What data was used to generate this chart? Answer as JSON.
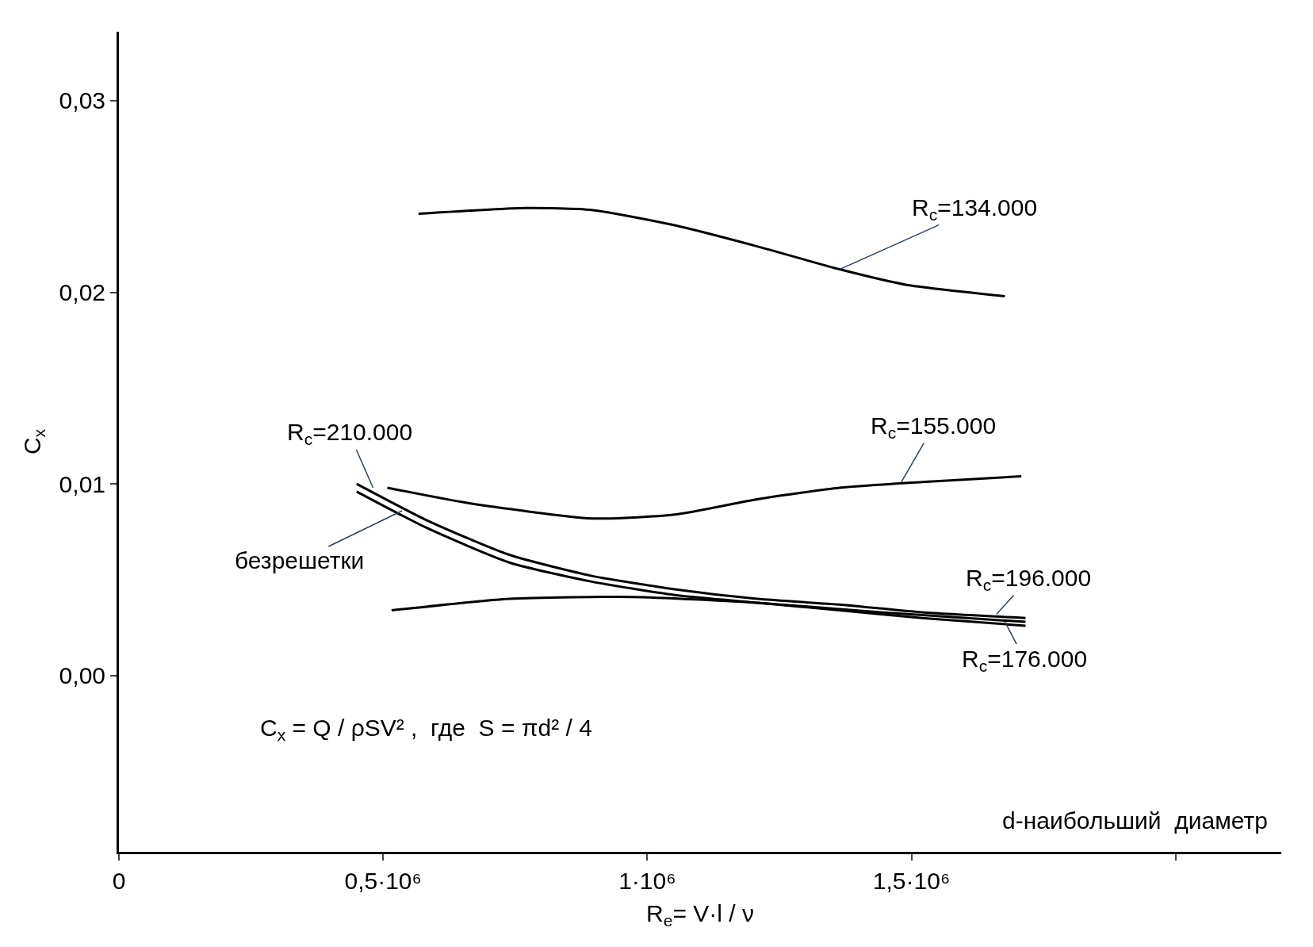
{
  "chart_data": {
    "type": "line",
    "xlabel": "R$_{e}$= V·l / ν",
    "ylabel": "C$_{x}$",
    "xlim": [
      0,
      2200000
    ],
    "ylim": [
      -0.0092,
      0.0336
    ],
    "xticks": [
      {
        "value": 0,
        "label": "0"
      },
      {
        "value": 500000,
        "label": "0,5·10⁶"
      },
      {
        "value": 1000000,
        "label": "1·10⁶"
      },
      {
        "value": 1500000,
        "label": "1,5·10⁶"
      },
      {
        "value": 2000000,
        "label": null
      }
    ],
    "yticks": [
      {
        "value": 0,
        "label": "0,00"
      },
      {
        "value": 0.01,
        "label": "0,01"
      },
      {
        "value": 0.02,
        "label": "0,02"
      },
      {
        "value": 0.03,
        "label": "0,03"
      }
    ],
    "marker": "none",
    "line_style": "solid",
    "series": [
      {
        "color": "#000000",
        "x": [
          567000,
          770000,
          895000,
          1052000,
          1208000,
          1364000,
          1489000,
          1677000
        ],
        "values": [
          0.0241,
          0.0244,
          0.0243,
          0.0235,
          0.0224,
          0.0212,
          0.0204,
          0.0198
        ]
      },
      {
        "color": "#000000",
        "x": [
          508000,
          661000,
          895000,
          1052000,
          1208000,
          1364000,
          1520000,
          1708000
        ],
        "values": [
          0.0098,
          0.009,
          0.0082,
          0.0084,
          0.0092,
          0.0098,
          0.0101,
          0.0104
        ]
      },
      {
        "color": "#000000",
        "x": [
          450000,
          583000,
          739000,
          895000,
          1052000,
          1208000,
          1364000,
          1520000,
          1716000
        ],
        "values": [
          0.01,
          0.0081,
          0.0063,
          0.0052,
          0.0045,
          0.004,
          0.0037,
          0.0033,
          0.003
        ]
      },
      {
        "color": "#000000",
        "x": [
          450000,
          583000,
          739000,
          895000,
          1052000,
          1208000,
          1364000,
          1520000,
          1716000
        ],
        "values": [
          0.0096,
          0.0077,
          0.0059,
          0.0049,
          0.0042,
          0.0038,
          0.0034,
          0.003,
          0.0026
        ]
      },
      {
        "color": "#000000",
        "x": [
          516000,
          739000,
          973000,
          1208000,
          1442000,
          1716000
        ],
        "values": [
          0.0034,
          0.004,
          0.0041,
          0.0038,
          0.0033,
          0.0028
        ]
      }
    ],
    "annotations": [
      {
        "text": "R$_{c}$=134.000",
        "x": 1364000,
        "y": 0.0212
      },
      {
        "text": "R$_{c}$=155.000",
        "x": 1481000,
        "y": 0.0101
      },
      {
        "text": "R$_{c}$=210.000",
        "x": 481000,
        "y": 0.0098
      },
      {
        "text": "безрешетки",
        "x": 536000,
        "y": 0.0086
      },
      {
        "text": "R$_{c}$=196.000",
        "x": 1661000,
        "y": 0.0032
      },
      {
        "text": "R$_{c}$=176.000",
        "x": 1677000,
        "y": 0.0028
      },
      "C$_{x}$ = Q / ρSV² ,  где  S = πd² / 4",
      "d-наибольший  диаметр"
    ]
  }
}
